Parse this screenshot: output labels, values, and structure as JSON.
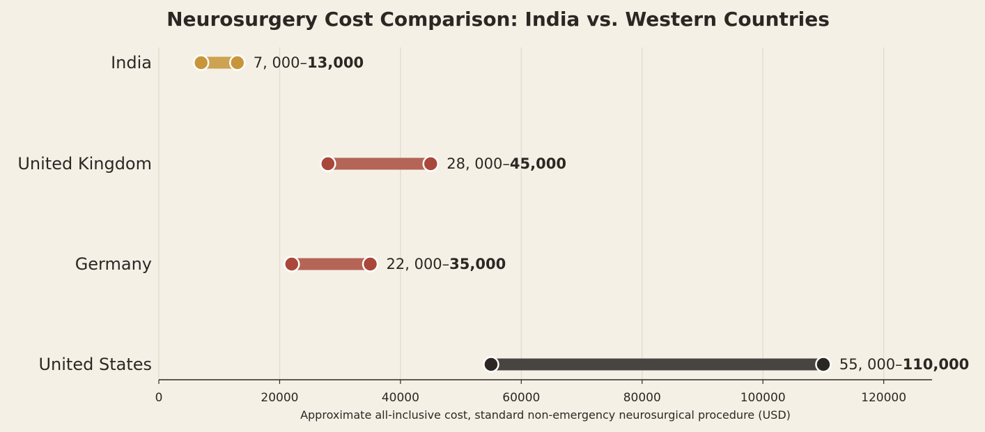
{
  "chart_data": {
    "type": "dumbbell",
    "title": "Neurosurgery Cost Comparison: India vs. Western Countries",
    "xlabel": "Approximate all-inclusive cost, standard non-emergency neurosurgical procedure (USD)",
    "ylabel": "",
    "xlim": [
      0,
      128000
    ],
    "xticks": [
      0,
      20000,
      40000,
      60000,
      80000,
      100000,
      120000
    ],
    "grid": "vertical",
    "categories": [
      "India",
      "United Kingdom",
      "Germany",
      "United States"
    ],
    "rows": [
      {
        "label": "India",
        "low": 7000,
        "high": 13000,
        "low_text": "7, 000–",
        "high_text": "13,000",
        "bar_color": "#cda252",
        "dot_color": "#c8963a"
      },
      {
        "label": "United Kingdom",
        "low": 28000,
        "high": 45000,
        "low_text": "28, 000–",
        "high_text": "45,000",
        "bar_color": "#b46555",
        "dot_color": "#a8473a"
      },
      {
        "label": "Germany",
        "low": 22000,
        "high": 35000,
        "low_text": "22, 000–",
        "high_text": "35,000",
        "bar_color": "#b46555",
        "dot_color": "#a8473a"
      },
      {
        "label": "United States",
        "low": 55000,
        "high": 110000,
        "low_text": "55, 000–",
        "high_text": "110,000",
        "bar_color": "#474441",
        "dot_color": "#2b2824"
      }
    ],
    "colors": {
      "background": "#f5f0e6",
      "grid": "#e4ddd0",
      "axis": "#2b2824",
      "text": "#2b2824"
    }
  }
}
